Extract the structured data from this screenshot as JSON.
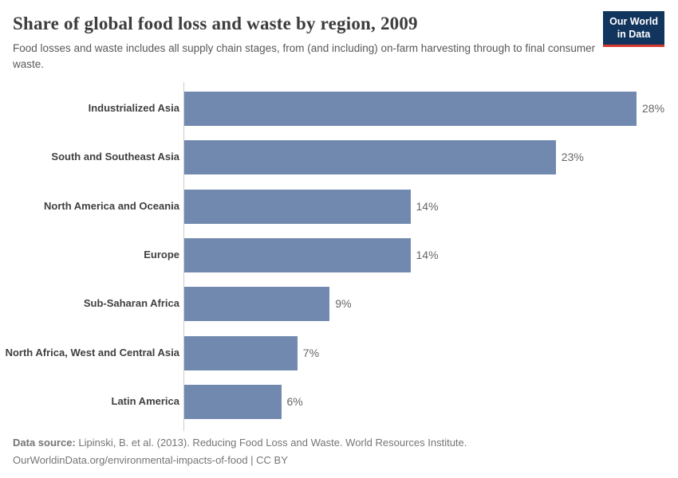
{
  "header": {
    "title": "Share of global food loss and waste by region, 2009",
    "subtitle": "Food losses and waste includes all supply chain stages, from (and including) on-farm harvesting through to final consumer waste.",
    "logo": {
      "line1": "Our World",
      "line2": "in Data",
      "background_color": "#12355e",
      "accent_color": "#d6392f"
    }
  },
  "chart_data": {
    "type": "bar",
    "orientation": "horizontal",
    "title": "Share of global food loss and waste by region, 2009",
    "xlabel": "",
    "ylabel": "",
    "categories": [
      "Industrialized Asia",
      "South and Southeast Asia",
      "North America and Oceania",
      "Europe",
      "Sub-Saharan Africa",
      "North Africa, West and Central Asia",
      "Latin America"
    ],
    "values": [
      28,
      23,
      14,
      14,
      9,
      7,
      6
    ],
    "value_labels": [
      "28%",
      "23%",
      "14%",
      "14%",
      "9%",
      "7%",
      "6%"
    ],
    "unit": "%",
    "xlim": [
      0,
      28
    ],
    "grid": false,
    "legend": false,
    "bar_color": "#7189ae",
    "value_label_color": "#666666",
    "category_label_color": "#404040",
    "axis_color": "#cccccc"
  },
  "footer": {
    "source_label": "Data source:",
    "source_text": " Lipinski, B. et al. (2013). Reducing Food Loss and Waste. World Resources Institute.",
    "link_line": "OurWorldinData.org/environmental-impacts-of-food | CC BY"
  }
}
